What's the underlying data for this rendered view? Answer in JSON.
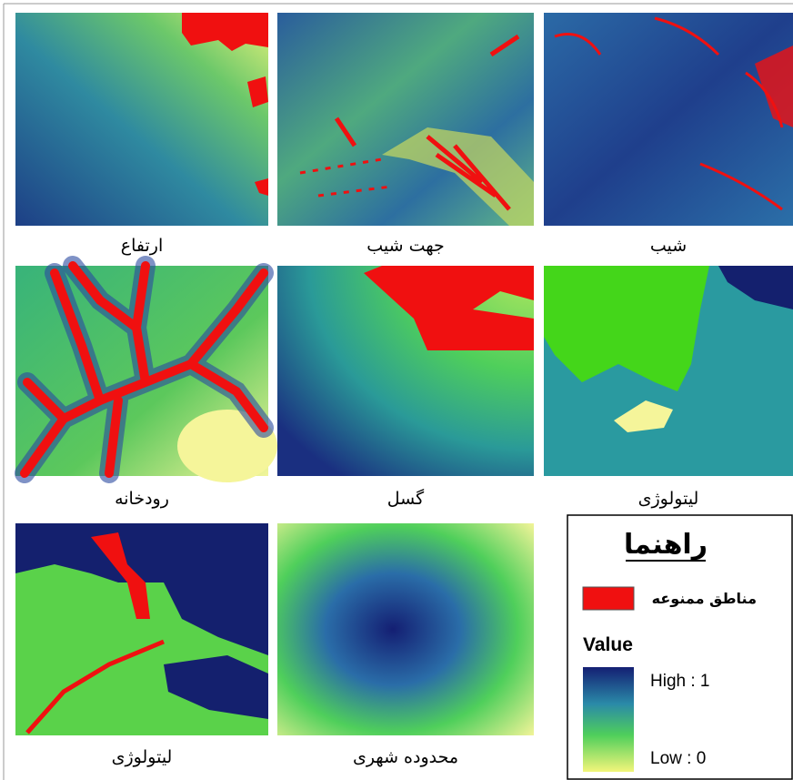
{
  "panels": [
    {
      "label": "ارتفاع"
    },
    {
      "label": "جهت شیب"
    },
    {
      "label": "شیب"
    },
    {
      "label": "رودخانه"
    },
    {
      "label": "گسل"
    },
    {
      "label": "لیتولوژی"
    },
    {
      "label": "لیتولوژی"
    },
    {
      "label": "محدوده شهری"
    }
  ],
  "legend": {
    "title": "راهنما",
    "restricted": "مناطق ممنوعه",
    "value_title": "Value",
    "high": "High : 1",
    "low": "Low : 0"
  }
}
